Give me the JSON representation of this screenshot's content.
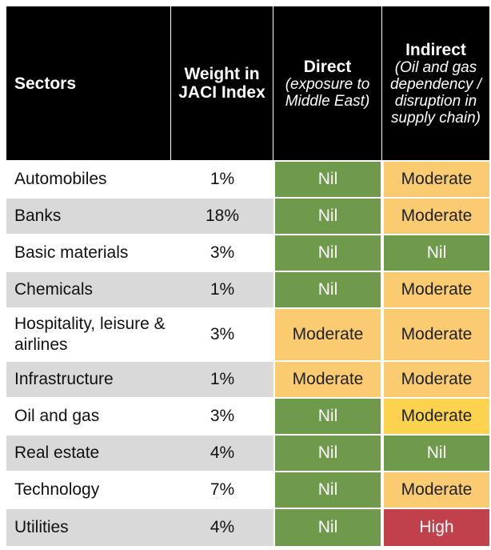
{
  "header": {
    "sectors": "Sectors",
    "weight": "Weight in JACI Index",
    "direct": {
      "title": "Direct",
      "note": "(exposure to Middle East)"
    },
    "indirect": {
      "title": "Indirect",
      "note": "(Oil and gas dependency / disruption in supply chain)"
    }
  },
  "table": {
    "rows": [
      [
        "Automobiles",
        "1%",
        {
          "text": "Nil",
          "color": "#6f9a4c"
        },
        {
          "text": "Moderate",
          "color": "#fbcb72"
        }
      ],
      [
        "Banks",
        "18%",
        {
          "text": "Nil",
          "color": "#6f9a4c"
        },
        {
          "text": "Moderate",
          "color": "#fbcb72"
        }
      ],
      [
        "Basic materials",
        "3%",
        {
          "text": "Nil",
          "color": "#6f9a4c"
        },
        {
          "text": "Nil",
          "color": "#6f9a4c"
        }
      ],
      [
        "Chemicals",
        "1%",
        {
          "text": "Nil",
          "color": "#6f9a4c"
        },
        {
          "text": "Moderate",
          "color": "#fbcb72"
        }
      ],
      [
        "Hospitality, leisure & airlines",
        "3%",
        {
          "text": "Moderate",
          "color": "#fbcb72"
        },
        {
          "text": "Moderate",
          "color": "#fbcb72"
        }
      ],
      [
        "Infrastructure",
        "1%",
        {
          "text": "Moderate",
          "color": "#fbcb72"
        },
        {
          "text": "Moderate",
          "color": "#fbcb72"
        }
      ],
      [
        "Oil and gas",
        "3%",
        {
          "text": "Nil",
          "color": "#6f9a4c"
        },
        {
          "text": "Moderate",
          "color": "#fcd24f"
        }
      ],
      [
        "Real estate",
        "4%",
        {
          "text": "Nil",
          "color": "#6f9a4c"
        },
        {
          "text": "Nil",
          "color": "#6f9a4c"
        }
      ],
      [
        "Technology",
        "7%",
        {
          "text": "Nil",
          "color": "#6f9a4c"
        },
        {
          "text": "Moderate",
          "color": "#fbcb72"
        }
      ],
      [
        "Utilities",
        "4%",
        {
          "text": "Nil",
          "color": "#6f9a4c"
        },
        {
          "text": "High",
          "color": "#c0414b"
        }
      ]
    ]
  }
}
